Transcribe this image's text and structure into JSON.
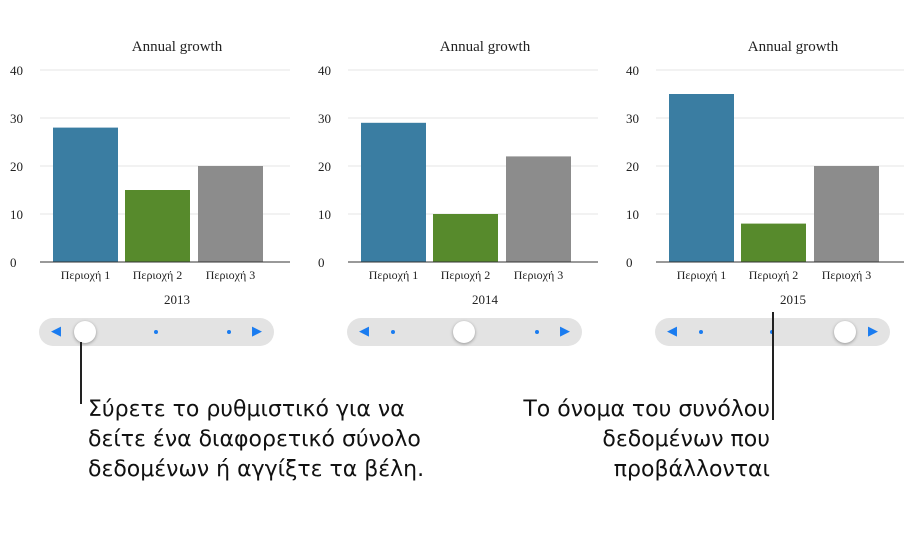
{
  "colors": {
    "series": [
      "#3a7da2",
      "#578a2c",
      "#8c8c8c"
    ],
    "slider_accent": "#1a7cf0"
  },
  "chart_data": [
    {
      "type": "bar",
      "title": "Annual growth",
      "xlabel": "2013",
      "categories": [
        "Περιοχή 1",
        "Περιοχή 2",
        "Περιοχή 3"
      ],
      "values": [
        28,
        15,
        20
      ],
      "ylim": [
        0,
        40
      ],
      "yticks": [
        "0",
        "10",
        "20",
        "30",
        "40"
      ],
      "grid": true
    },
    {
      "type": "bar",
      "title": "Annual growth",
      "xlabel": "2014",
      "categories": [
        "Περιοχή 1",
        "Περιοχή 2",
        "Περιοχή 3"
      ],
      "values": [
        29,
        10,
        22
      ],
      "ylim": [
        0,
        40
      ],
      "yticks": [
        "0",
        "10",
        "20",
        "30",
        "40"
      ],
      "grid": true
    },
    {
      "type": "bar",
      "title": "Annual growth",
      "xlabel": "2015",
      "categories": [
        "Περιοχή 1",
        "Περιοχή 2",
        "Περιοχή 3"
      ],
      "values": [
        35,
        8,
        20
      ],
      "ylim": [
        0,
        40
      ],
      "yticks": [
        "0",
        "10",
        "20",
        "30",
        "40"
      ],
      "grid": true
    }
  ],
  "sliders": [
    {
      "selected_index": 0,
      "count": 3
    },
    {
      "selected_index": 1,
      "count": 3
    },
    {
      "selected_index": 2,
      "count": 3
    }
  ],
  "callouts": {
    "slider_text": "Σύρετε το ρυθμιστικό για να δείτε ένα διαφορετικό σύνολο δεδομένων ή αγγίξτε τα βέλη.",
    "dataset_text": "Το όνομα του συνόλου δεδομένων που προβάλλονται"
  }
}
